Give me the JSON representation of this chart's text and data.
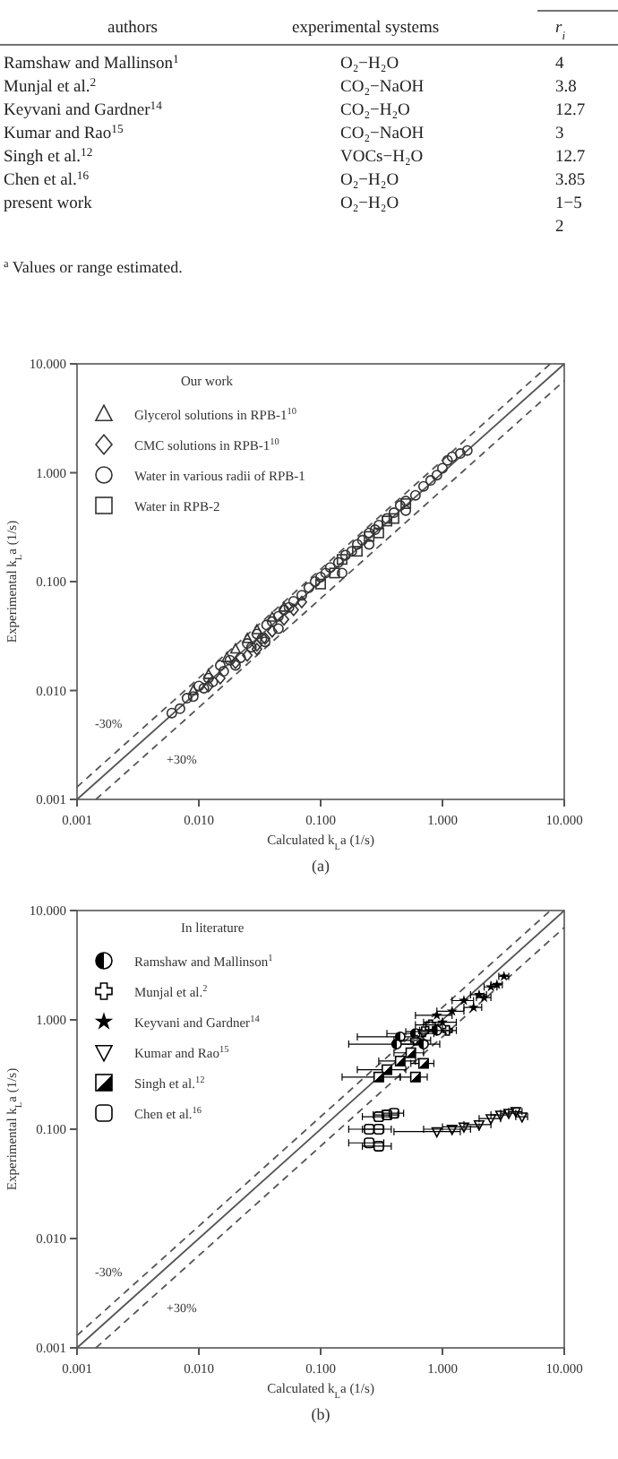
{
  "chart_data": [
    {
      "type": "other",
      "categories": [
        "authors",
        "experimental systems",
        "r$_{i}$"
      ],
      "annotations": [
        "Ramshaw and Mallinson$^{1}$",
        "O₂−H₂O",
        "4",
        "Munjal et al.$^{2}$",
        "CO₂−NaOH",
        "3.8",
        "Keyvani and Gardner$^{14}$",
        "CO₂−H₂O",
        "12.7",
        "Kumar and Rao$^{15}$",
        "CO₂−NaOH",
        "3",
        "Singh et al.$^{12}$",
        "VOCs−H₂O",
        "12.7",
        "Chen et al.$^{16}$",
        "O₂−H₂O",
        "3.85",
        "present work",
        "O₂−H₂O",
        "1−5",
        "2"
      ],
      "subtitle": "$^{a}$ Values or range estimated."
    },
    {
      "type": "scatter",
      "xlabel": "Calculated k$_{L}$a (1/s)",
      "ylabel": "Experimental k$_{L}$a (1/s)",
      "log": "xy",
      "legend": "top left",
      "legend_title": "Our work",
      "xlim": [
        0.001,
        10
      ],
      "ylim": [
        0.001,
        10
      ],
      "xticks": [
        {
          "value": 0.001,
          "label": "0.001"
        },
        {
          "value": 0.01,
          "label": "0.010"
        },
        {
          "value": 0.1,
          "label": "0.100"
        },
        {
          "value": 1,
          "label": "1.000"
        },
        {
          "value": 10,
          "label": "10.000"
        }
      ],
      "yticks": [
        {
          "value": 0.001,
          "label": "0.001"
        },
        {
          "value": 0.01,
          "label": "0.010"
        },
        {
          "value": 0.1,
          "label": "0.100"
        },
        {
          "value": 1,
          "label": "1.000"
        },
        {
          "value": 10,
          "label": "10.000"
        }
      ],
      "annotations": [
        "-30%",
        "+30%",
        "(a)"
      ],
      "series": [
        {
          "type": "line",
          "color": "#555555",
          "line_style": "solid",
          "marker": "none",
          "x": [
            0.001,
            10
          ],
          "values": [
            0.001,
            10
          ]
        },
        {
          "type": "line",
          "color": "#555555",
          "line_style": "dashed",
          "marker": "none",
          "x": [
            0.001,
            7.69
          ],
          "values": [
            0.0013,
            10
          ]
        },
        {
          "type": "line",
          "color": "#555555",
          "line_style": "dashed",
          "marker": "none",
          "x": [
            0.00143,
            10
          ],
          "values": [
            0.001,
            7
          ]
        },
        {
          "name": "Glycerol solutions in RPB-1$^{10}$",
          "color": "#333333",
          "marker": "triangle",
          "x": [
            0.009,
            0.012,
            0.017,
            0.02,
            0.025,
            0.03,
            0.04,
            0.05
          ],
          "values": [
            0.01,
            0.014,
            0.02,
            0.024,
            0.03,
            0.036,
            0.047,
            0.058
          ]
        },
        {
          "name": "CMC solutions in RPB-1$^{10}$",
          "color": "#333333",
          "marker": "diamond",
          "x": [
            0.012,
            0.015,
            0.02,
            0.025,
            0.03,
            0.04,
            0.05,
            0.06,
            0.07,
            0.03,
            0.035
          ],
          "values": [
            0.011,
            0.013,
            0.018,
            0.021,
            0.026,
            0.035,
            0.045,
            0.055,
            0.065,
            0.024,
            0.03
          ]
        },
        {
          "name": "Water in various radii of RPB-1",
          "color": "#333333",
          "marker": "circle",
          "x": [
            0.006,
            0.007,
            0.008,
            0.009,
            0.01,
            0.011,
            0.012,
            0.013,
            0.015,
            0.016,
            0.018,
            0.02,
            0.022,
            0.025,
            0.027,
            0.03,
            0.033,
            0.036,
            0.04,
            0.045,
            0.05,
            0.055,
            0.06,
            0.07,
            0.08,
            0.09,
            0.1,
            0.11,
            0.12,
            0.14,
            0.16,
            0.18,
            0.2,
            0.22,
            0.25,
            0.28,
            0.3,
            0.35,
            0.4,
            0.45,
            0.5,
            0.6,
            0.7,
            0.8,
            0.9,
            1.0,
            1.1,
            1.2,
            1.4,
            1.6,
            0.15,
            0.25,
            0.5,
            0.035,
            0.045
          ],
          "values": [
            0.0062,
            0.0068,
            0.0085,
            0.0088,
            0.011,
            0.0105,
            0.013,
            0.012,
            0.017,
            0.015,
            0.019,
            0.017,
            0.02,
            0.027,
            0.025,
            0.033,
            0.03,
            0.04,
            0.043,
            0.048,
            0.055,
            0.058,
            0.066,
            0.075,
            0.088,
            0.1,
            0.11,
            0.12,
            0.135,
            0.15,
            0.175,
            0.19,
            0.22,
            0.24,
            0.28,
            0.3,
            0.33,
            0.38,
            0.43,
            0.5,
            0.55,
            0.62,
            0.75,
            0.85,
            0.95,
            1.1,
            1.3,
            1.4,
            1.5,
            1.6,
            0.12,
            0.22,
            0.45,
            0.028,
            0.037
          ]
        },
        {
          "name": "Water in RPB-2",
          "color": "#333333",
          "marker": "square",
          "x": [
            0.1,
            0.13,
            0.15,
            0.2,
            0.25,
            0.3,
            0.35,
            0.4,
            0.5
          ],
          "values": [
            0.095,
            0.12,
            0.16,
            0.19,
            0.26,
            0.28,
            0.36,
            0.38,
            0.52
          ]
        }
      ]
    },
    {
      "type": "scatter",
      "xlabel": "Calculated k$_{L}$a (1/s)",
      "ylabel": "Experimental k$_{L}$a (1/s)",
      "log": "xy",
      "legend": "top left",
      "legend_title": "In literature",
      "xlim": [
        0.001,
        10
      ],
      "ylim": [
        0.001,
        10
      ],
      "xticks": [
        {
          "value": 0.001,
          "label": "0.001"
        },
        {
          "value": 0.01,
          "label": "0.010"
        },
        {
          "value": 0.1,
          "label": "0.100"
        },
        {
          "value": 1,
          "label": "1.000"
        },
        {
          "value": 10,
          "label": "10.000"
        }
      ],
      "yticks": [
        {
          "value": 0.001,
          "label": "0.001"
        },
        {
          "value": 0.01,
          "label": "0.010"
        },
        {
          "value": 0.1,
          "label": "0.100"
        },
        {
          "value": 1,
          "label": "1.000"
        },
        {
          "value": 10,
          "label": "10.000"
        }
      ],
      "annotations": [
        "-30%",
        "+30%",
        "(b)"
      ],
      "series": [
        {
          "type": "line",
          "color": "#555555",
          "line_style": "solid",
          "marker": "none",
          "x": [
            0.001,
            10
          ],
          "values": [
            0.001,
            10
          ]
        },
        {
          "type": "line",
          "color": "#555555",
          "line_style": "dashed",
          "marker": "none",
          "x": [
            0.001,
            7.69
          ],
          "values": [
            0.0013,
            10
          ]
        },
        {
          "type": "line",
          "color": "#555555",
          "line_style": "dashed",
          "marker": "none",
          "x": [
            0.00143,
            10
          ],
          "values": [
            0.001,
            7
          ]
        },
        {
          "name": "Ramshaw and Mallinson$^{1}$",
          "color": "#000000",
          "marker": "circle-half",
          "x": [
            0.45,
            0.6,
            0.42,
            0.7,
            0.9
          ],
          "values": [
            0.7,
            0.75,
            0.6,
            0.6,
            0.8
          ],
          "xerrors": [
            0.25,
            0.25,
            0.25,
            0.25,
            0.25
          ]
        },
        {
          "name": "Munjal et al.$^{2}$",
          "color": "#000000",
          "marker": "cross",
          "x": [
            0.8,
            0.7,
            0.6,
            1.1
          ],
          "values": [
            0.9,
            0.78,
            0.65,
            0.8
          ],
          "xerrors": [
            0.2,
            0.2,
            0.2,
            0.2
          ]
        },
        {
          "name": "Keyvani and Gardner$^{14}$",
          "color": "#000000",
          "marker": "star",
          "x": [
            1.5,
            2.0,
            2.5,
            3.2,
            1.2,
            1.8,
            2.2,
            0.9,
            1.0,
            2.8
          ],
          "values": [
            1.5,
            1.7,
            2.0,
            2.5,
            1.2,
            1.3,
            1.6,
            1.1,
            0.95,
            2.1
          ],
          "xerrors": [
            0.3,
            0.3,
            0.3,
            0.3,
            0.3,
            0.3,
            0.3,
            0.3,
            0.3,
            0.3
          ]
        },
        {
          "name": "Kumar and Rao$^{15}$",
          "color": "#000000",
          "marker": "triangle-down",
          "x": [
            1.2,
            1.5,
            2,
            2.5,
            3,
            3.5,
            4,
            4.5,
            0.9
          ],
          "values": [
            0.1,
            0.105,
            0.11,
            0.125,
            0.135,
            0.14,
            0.145,
            0.13,
            0.095
          ],
          "xerrors": [
            0.5,
            0.5,
            0.5,
            0.5,
            0.5,
            0.5,
            0.5,
            0.5,
            0.5
          ]
        },
        {
          "name": "Singh et al.$^{12}$",
          "color": "#000000",
          "marker": "square-half",
          "x": [
            0.35,
            0.45,
            0.55,
            0.3,
            0.6,
            0.7
          ],
          "values": [
            0.35,
            0.42,
            0.5,
            0.3,
            0.3,
            0.4
          ],
          "xerrors": [
            0.15,
            0.15,
            0.15,
            0.15,
            0.15,
            0.15
          ]
        },
        {
          "name": "Chen et al.$^{16}$",
          "color": "#000000",
          "marker": "square-rounded",
          "x": [
            0.3,
            0.35,
            0.4,
            0.25,
            0.3,
            0.25,
            0.3
          ],
          "values": [
            0.13,
            0.135,
            0.14,
            0.1,
            0.1,
            0.075,
            0.07
          ],
          "xerrors": [
            0.08,
            0.08,
            0.08,
            0.08,
            0.08,
            0.08,
            0.08
          ]
        }
      ]
    }
  ]
}
